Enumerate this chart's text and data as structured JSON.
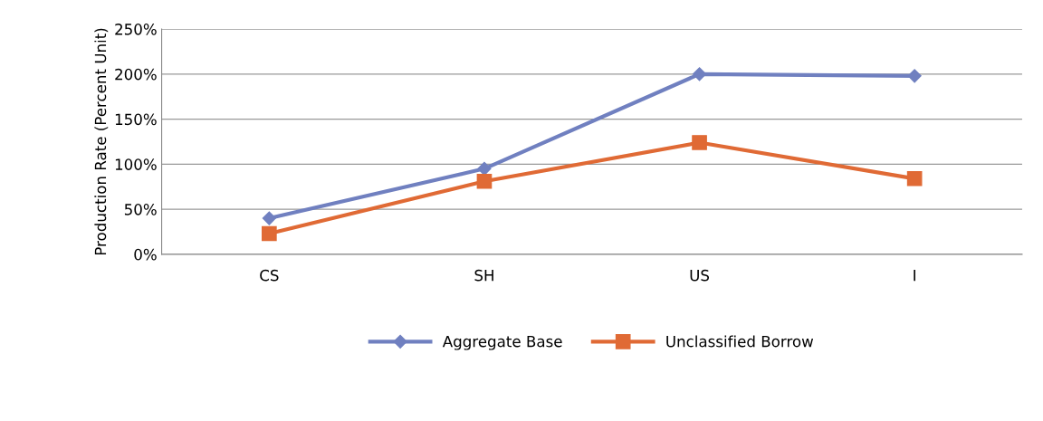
{
  "chart_data": {
    "type": "line",
    "ylabel": "Production Rate (Percent Unit)",
    "categories": [
      "CS",
      "SH",
      "US",
      "I"
    ],
    "series": [
      {
        "name": "Aggregate Base",
        "color": "#7080c0",
        "marker": "diamond",
        "values": [
          40,
          95,
          200,
          198
        ]
      },
      {
        "name": "Unclassified Borrow",
        "color": "#e06a35",
        "marker": "square",
        "values": [
          23,
          81,
          124,
          84
        ]
      }
    ],
    "ylim": [
      0,
      250
    ],
    "yticks": [
      {
        "value": 0,
        "label": "0%"
      },
      {
        "value": 50,
        "label": "50%"
      },
      {
        "value": 100,
        "label": "100%"
      },
      {
        "value": 150,
        "label": "150%"
      },
      {
        "value": 200,
        "label": "200%"
      },
      {
        "value": 250,
        "label": "250%"
      }
    ],
    "grid": "y",
    "legend": "bottom",
    "line_style": "solid"
  }
}
